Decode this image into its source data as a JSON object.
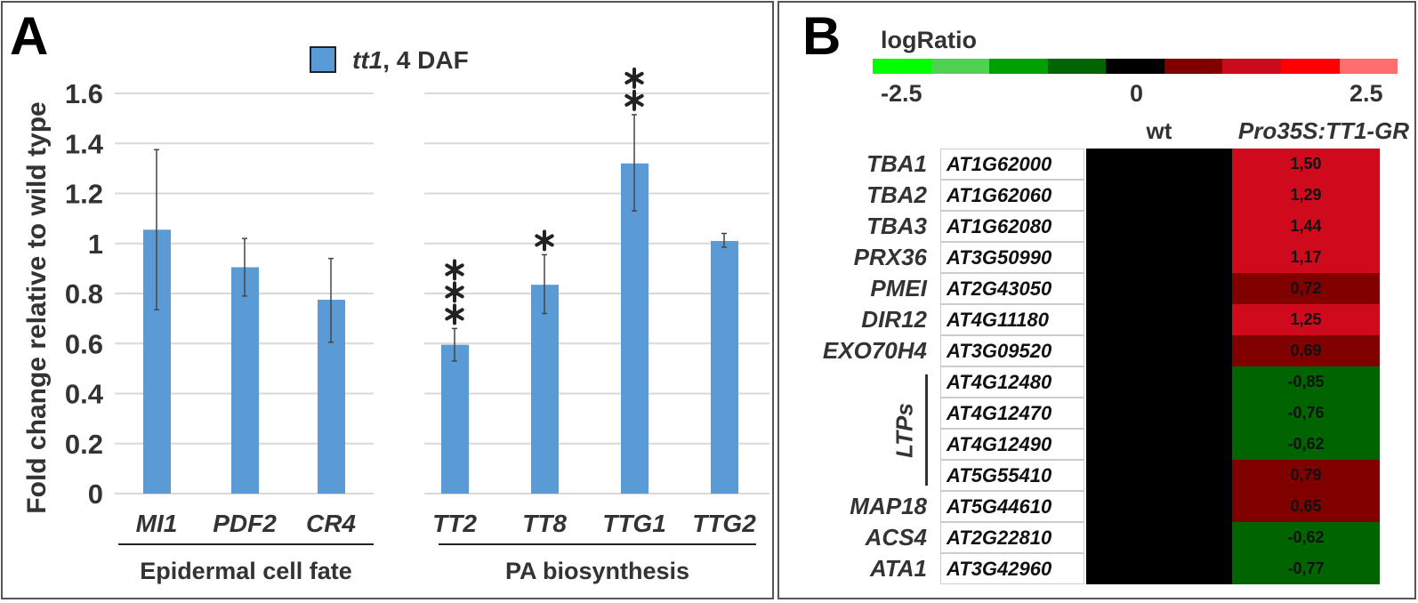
{
  "panelA": {
    "panel_label": "A",
    "legend_italic": "tt1",
    "legend_rest": ", 4 DAF",
    "group_labels": [
      "Epidermal cell fate",
      "PA biosynthesis"
    ]
  },
  "chart_data": {
    "type": "bar",
    "title": "",
    "xlabel": "",
    "ylabel": "Fold change relative to wild type",
    "ylim": [
      0,
      1.6
    ],
    "yticks": [
      "0",
      "0.2",
      "0.4",
      "0.6",
      "0.8",
      "1",
      "1.2",
      "1.4",
      "1.6"
    ],
    "grid": true,
    "legend": {
      "entry": "tt1, 4 DAF",
      "placement": "top-center"
    },
    "color": "#5b9bd5",
    "categories": [
      "MI1",
      "PDF2",
      "CR4",
      "TT2",
      "TT8",
      "TTG1",
      "TTG2"
    ],
    "groups": [
      {
        "name": "Epidermal cell fate",
        "categories": [
          "MI1",
          "PDF2",
          "CR4"
        ]
      },
      {
        "name": "PA biosynthesis",
        "categories": [
          "TT2",
          "TT8",
          "TTG1",
          "TTG2"
        ]
      }
    ],
    "series": [
      {
        "name": "tt1, 4 DAF",
        "values": [
          1.055,
          0.905,
          0.775,
          0.595,
          0.835,
          1.32,
          1.01
        ],
        "error_low": [
          0.735,
          0.79,
          0.605,
          0.53,
          0.72,
          1.13,
          0.985
        ],
        "error_high": [
          1.375,
          1.02,
          0.94,
          0.66,
          0.955,
          1.515,
          1.04
        ]
      }
    ],
    "significance": [
      "",
      "",
      "",
      "***",
      "*",
      "**",
      ""
    ]
  },
  "panelB": {
    "panel_label": "B",
    "scale_title": "logRatio",
    "scale_min": "-2.5",
    "scale_mid": "0",
    "scale_max": "2.5",
    "scale_colors": [
      "#00ff00",
      "#4fd24f",
      "#00a000",
      "#006400",
      "#000000",
      "#800000",
      "#cc0a1e",
      "#ff0000",
      "#ff6e6e"
    ],
    "col_wt": "wt",
    "col_tt1": "Pro35S:TT1-GR",
    "ltp_label": "LTPs",
    "colors": {
      "high": "#cf0a1d",
      "mid": "#800000",
      "neg": "#006400",
      "wt": "#000000"
    },
    "rows": [
      {
        "gene": "TBA1",
        "id": "AT1G62000",
        "value": "1,50",
        "level": "high"
      },
      {
        "gene": "TBA2",
        "id": "AT1G62060",
        "value": "1,29",
        "level": "high"
      },
      {
        "gene": "TBA3",
        "id": "AT1G62080",
        "value": "1,44",
        "level": "high"
      },
      {
        "gene": "PRX36",
        "id": "AT3G50990",
        "value": "1,17",
        "level": "high"
      },
      {
        "gene": "PMEI",
        "id": "AT2G43050",
        "value": "0,72",
        "level": "mid"
      },
      {
        "gene": "DIR12",
        "id": "AT4G11180",
        "value": "1,25",
        "level": "high"
      },
      {
        "gene": "EXO70H4",
        "id": "AT3G09520",
        "value": "0,69",
        "level": "mid"
      },
      {
        "gene": "",
        "id": "AT4G12480",
        "value": "-0,85",
        "level": "neg"
      },
      {
        "gene": "",
        "id": "AT4G12470",
        "value": "-0,76",
        "level": "neg"
      },
      {
        "gene": "",
        "id": "AT4G12490",
        "value": "-0,62",
        "level": "neg"
      },
      {
        "gene": "",
        "id": "AT5G55410",
        "value": "0,79",
        "level": "mid"
      },
      {
        "gene": "MAP18",
        "id": "AT5G44610",
        "value": "0,65",
        "level": "mid"
      },
      {
        "gene": "ACS4",
        "id": "AT2G22810",
        "value": "-0,62",
        "level": "neg"
      },
      {
        "gene": "ATA1",
        "id": "AT3G42960",
        "value": "-0,77",
        "level": "neg"
      }
    ]
  }
}
